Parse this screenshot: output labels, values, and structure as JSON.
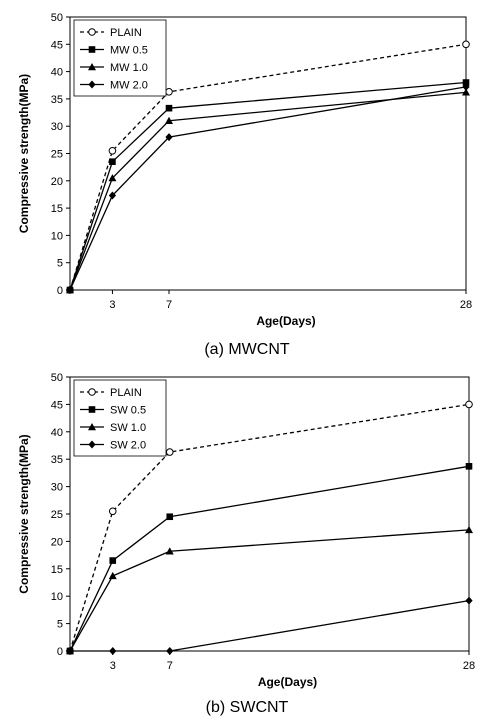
{
  "chart_data": [
    {
      "type": "line",
      "caption": "(a)  MWCNT",
      "xlabel": "Age(Days)",
      "ylabel": "Compressive strength(MPa)",
      "x": [
        0,
        3,
        7,
        28
      ],
      "xticks": [
        3,
        7,
        28
      ],
      "ylim": [
        0,
        50
      ],
      "yticks": [
        0,
        5,
        10,
        15,
        20,
        25,
        30,
        35,
        40,
        45,
        50
      ],
      "legend_position": "top-left",
      "series": [
        {
          "name": "PLAIN",
          "marker": "open-circle",
          "dash": true,
          "values": [
            0,
            25.5,
            36.3,
            45.0
          ]
        },
        {
          "name": "MW 0.5",
          "marker": "square",
          "dash": false,
          "values": [
            0,
            23.5,
            33.3,
            38.0
          ]
        },
        {
          "name": "MW 1.0",
          "marker": "triangle",
          "dash": false,
          "values": [
            0,
            20.5,
            31.0,
            36.2
          ]
        },
        {
          "name": "MW 2.0",
          "marker": "diamond",
          "dash": false,
          "values": [
            0,
            17.3,
            28.0,
            37.2
          ]
        }
      ]
    },
    {
      "type": "line",
      "caption": "(b)  SWCNT",
      "xlabel": "Age(Days)",
      "ylabel": "Compressive strength(MPa)",
      "x": [
        0,
        3,
        7,
        28
      ],
      "xticks": [
        3,
        7,
        28
      ],
      "ylim": [
        0,
        50
      ],
      "yticks": [
        0,
        5,
        10,
        15,
        20,
        25,
        30,
        35,
        40,
        45,
        50
      ],
      "legend_position": "top-left",
      "series": [
        {
          "name": "PLAIN",
          "marker": "open-circle",
          "dash": true,
          "values": [
            0,
            25.5,
            36.3,
            45.0
          ]
        },
        {
          "name": "SW 0.5",
          "marker": "square",
          "dash": false,
          "values": [
            0,
            16.5,
            24.5,
            33.7
          ]
        },
        {
          "name": "SW 1.0",
          "marker": "triangle",
          "dash": false,
          "values": [
            0,
            13.7,
            18.2,
            22.1
          ]
        },
        {
          "name": "SW 2.0",
          "marker": "diamond",
          "dash": false,
          "values": [
            0,
            0,
            0,
            9.2
          ]
        }
      ]
    }
  ]
}
